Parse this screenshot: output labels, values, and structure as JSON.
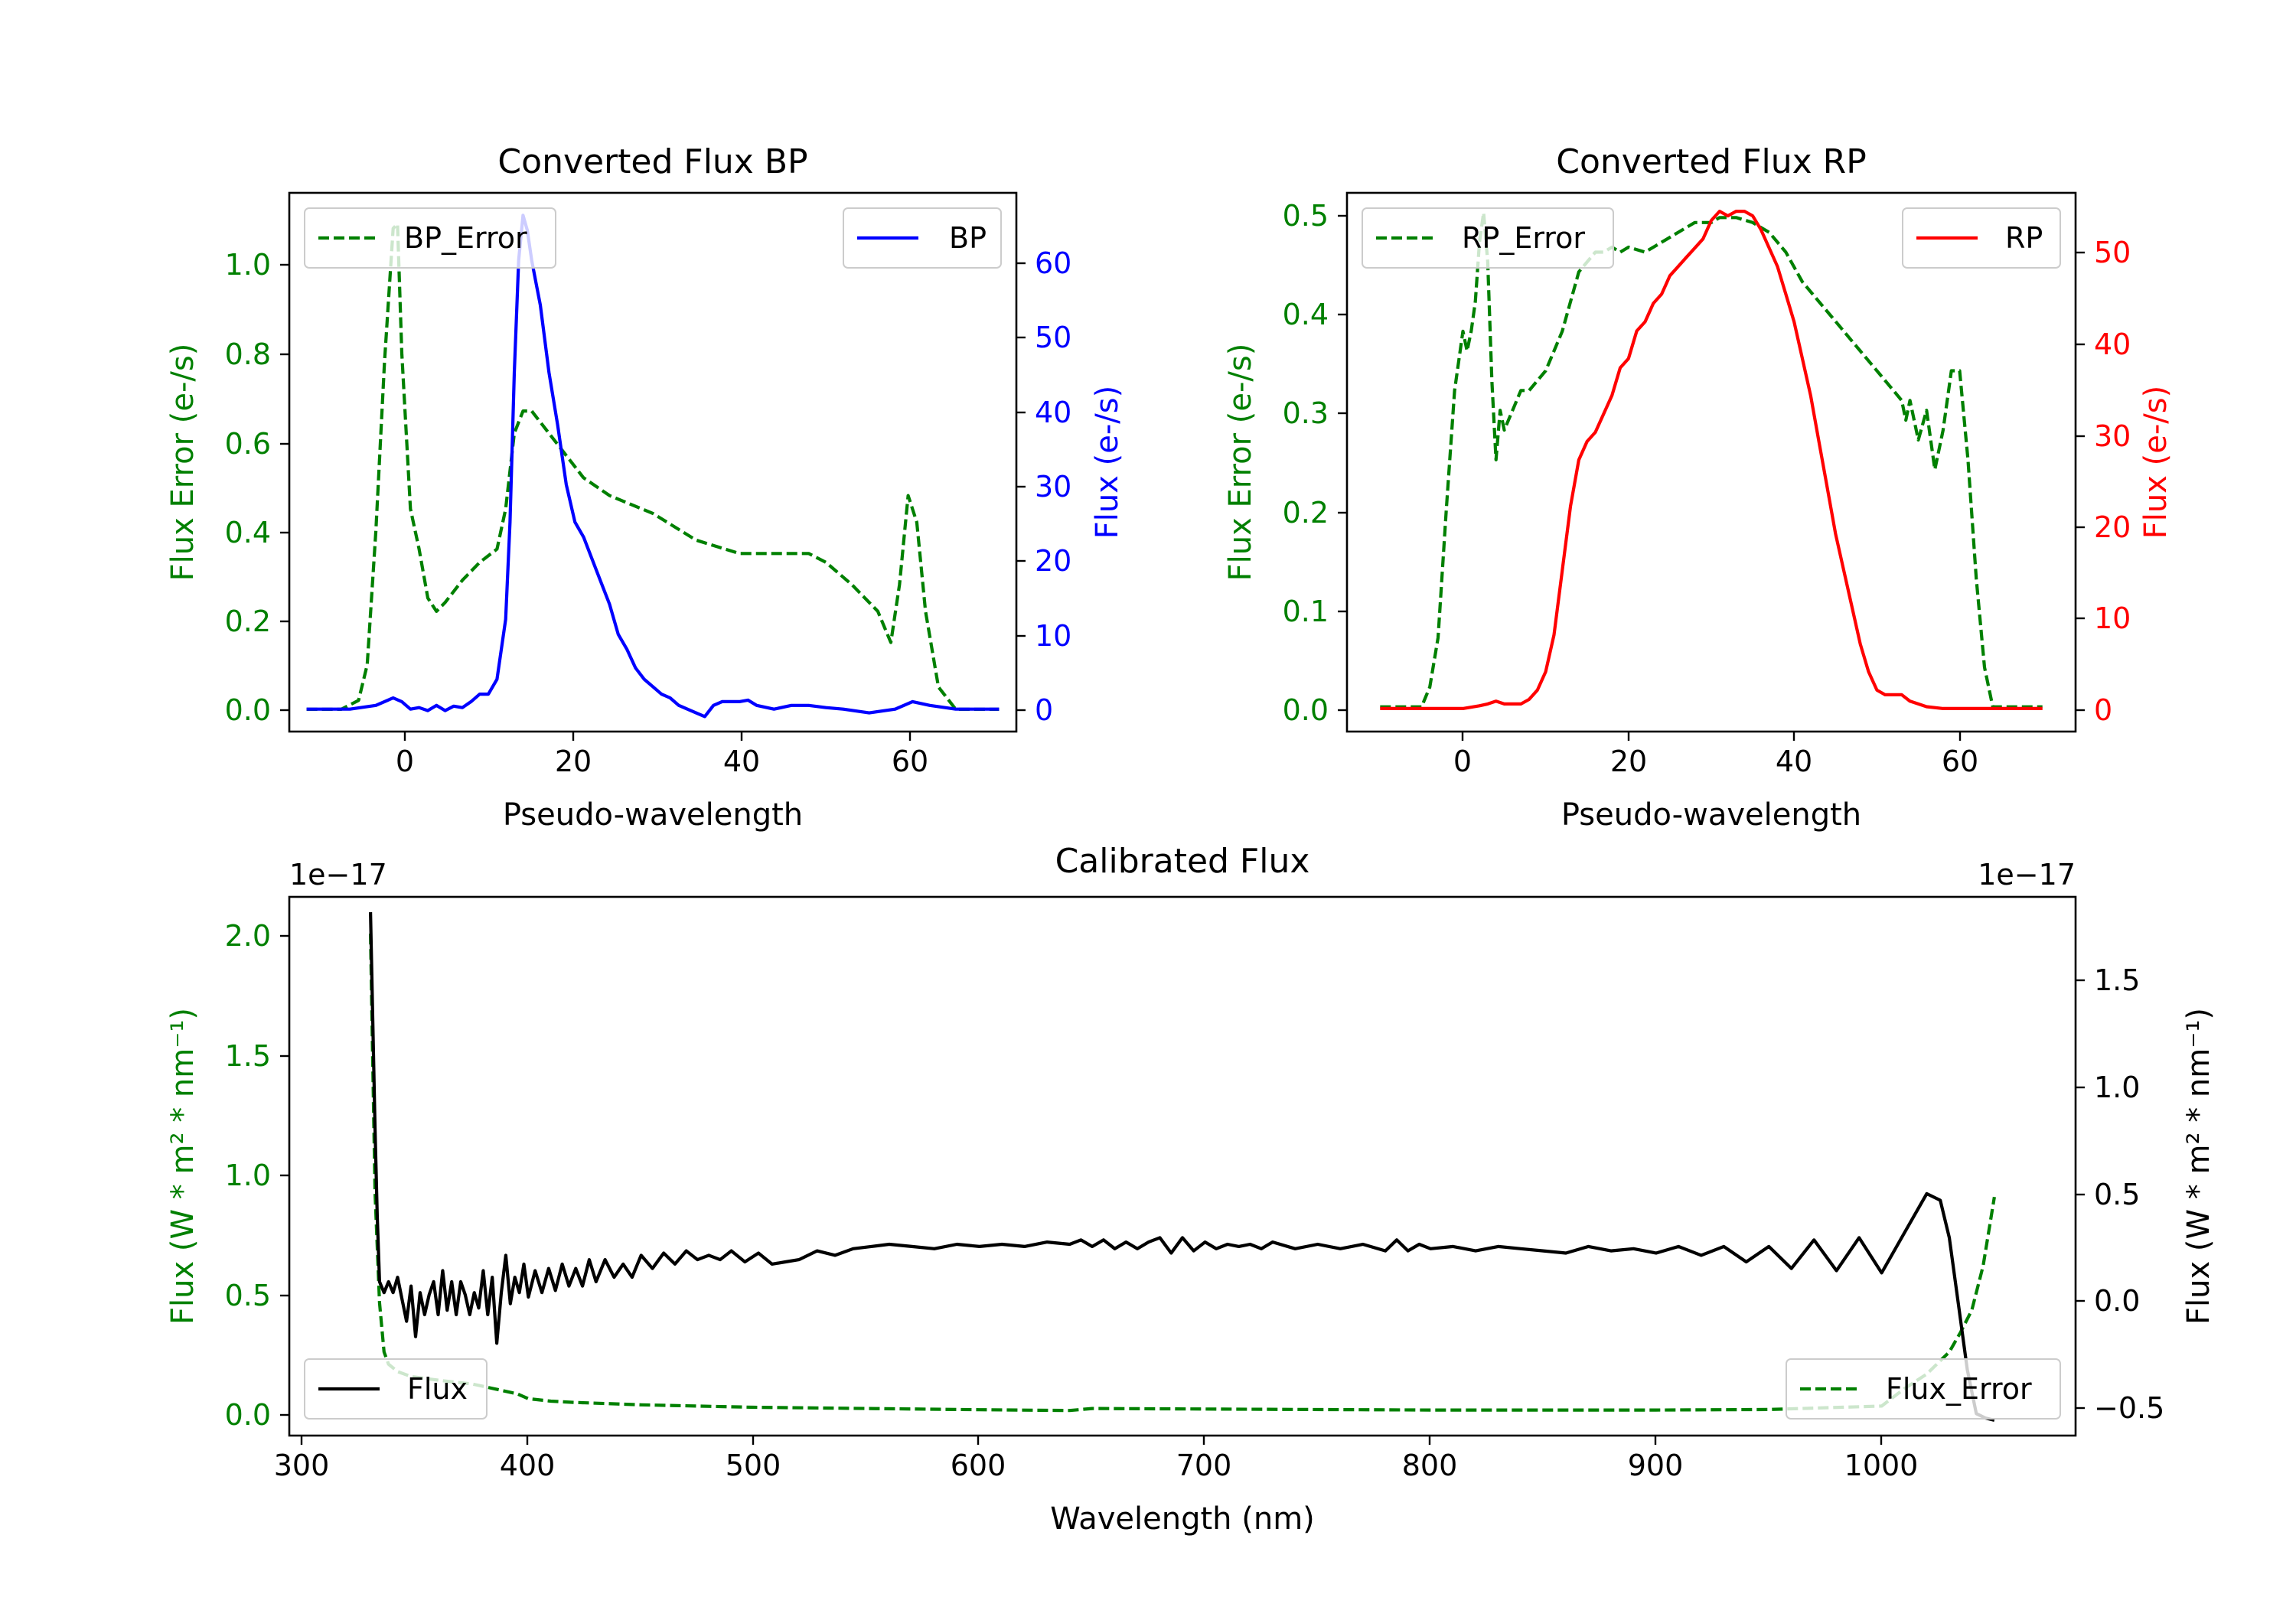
{
  "chart_data": [
    {
      "type": "line",
      "title": "Converted Flux BP",
      "xlabel": "Pseudo-wavelength",
      "xlim": [
        -12,
        72
      ],
      "xticks": [
        "0",
        "20",
        "40",
        "60"
      ],
      "left_axis": {
        "label": "Flux Error (e-/s)",
        "color": "#008000",
        "ylim": [
          -0.05,
          1.16
        ],
        "ticks": [
          "0.0",
          "0.2",
          "0.4",
          "0.6",
          "0.8",
          "1.0"
        ]
      },
      "right_axis": {
        "label": "Flux (e-/s)",
        "color": "#0000ff",
        "ylim": [
          -3,
          69
        ],
        "ticks": [
          "0",
          "10",
          "20",
          "30",
          "40",
          "50",
          "60"
        ]
      },
      "series": [
        {
          "name": "BP_Error",
          "axis": "left",
          "style": "dashed",
          "color": "#008000",
          "x": [
            -10,
            -6,
            -4,
            -3,
            -2,
            -1,
            0,
            0.5,
            1,
            2,
            3,
            4,
            5,
            6,
            8,
            10,
            12,
            13,
            14,
            15,
            16,
            18,
            20,
            22,
            25,
            30,
            35,
            40,
            45,
            48,
            50,
            53,
            56,
            57.5,
            58.5,
            59.5,
            60.5,
            61.5,
            63,
            65,
            70
          ],
          "y": [
            0.0,
            0.0,
            0.02,
            0.1,
            0.4,
            0.78,
            1.08,
            1.09,
            0.8,
            0.45,
            0.36,
            0.25,
            0.22,
            0.24,
            0.29,
            0.33,
            0.36,
            0.45,
            0.62,
            0.67,
            0.67,
            0.62,
            0.57,
            0.52,
            0.48,
            0.44,
            0.38,
            0.35,
            0.35,
            0.35,
            0.33,
            0.28,
            0.22,
            0.15,
            0.28,
            0.48,
            0.42,
            0.22,
            0.05,
            0.0,
            0.0
          ]
        },
        {
          "name": "BP",
          "axis": "right",
          "style": "solid",
          "color": "#0000ff",
          "x": [
            -10,
            -5,
            -2,
            0,
            1,
            2,
            3,
            4,
            5,
            6,
            7,
            8,
            9,
            10,
            11,
            12,
            13,
            13.5,
            14,
            14.5,
            15,
            15.5,
            16,
            16.5,
            17,
            18,
            19,
            20,
            21,
            22,
            23,
            24,
            25,
            26,
            27,
            28,
            29,
            30,
            31,
            32,
            33,
            34,
            35,
            36,
            37,
            38,
            39,
            40,
            41,
            42,
            44,
            46,
            48,
            50,
            52,
            55,
            58,
            60,
            62,
            65,
            70
          ],
          "y": [
            0,
            0,
            0.5,
            1.5,
            1.0,
            0,
            0.2,
            -0.2,
            0.5,
            -0.2,
            0.4,
            0.2,
            1.0,
            2.0,
            2.0,
            4.0,
            12,
            25,
            45,
            60,
            66,
            64,
            60,
            57,
            54,
            45,
            38,
            30,
            25,
            23,
            20,
            17,
            14,
            10,
            8,
            5.5,
            4,
            3,
            2,
            1.5,
            0.5,
            0,
            -0.5,
            -1,
            0.5,
            1,
            1,
            1,
            1.2,
            0.5,
            0,
            0.5,
            0.5,
            0.2,
            0,
            -0.5,
            0,
            1,
            0.5,
            0,
            0
          ]
        }
      ],
      "legend": [
        {
          "label": "BP_Error",
          "position": "upper-left"
        },
        {
          "label": "BP",
          "position": "upper-right"
        }
      ]
    },
    {
      "type": "line",
      "title": "Converted Flux RP",
      "xlabel": "Pseudo-wavelength",
      "xlim": [
        -14,
        74
      ],
      "xticks": [
        "0",
        "20",
        "40",
        "60"
      ],
      "left_axis": {
        "label": "Flux Error (e-/s)",
        "color": "#008000",
        "ylim": [
          -0.025,
          0.52
        ],
        "ticks": [
          "0.0",
          "0.1",
          "0.2",
          "0.3",
          "0.4",
          "0.5"
        ]
      },
      "right_axis": {
        "label": "Flux (e-/s)",
        "color": "#ff0000",
        "ylim": [
          -2.5,
          56
        ],
        "ticks": [
          "0",
          "10",
          "20",
          "30",
          "40",
          "50"
        ]
      },
      "series": [
        {
          "name": "RP_Error",
          "axis": "left",
          "style": "dashed",
          "color": "#008000",
          "x": [
            -10,
            -5,
            -4,
            -3,
            -2,
            -1,
            0,
            0.5,
            1,
            1.5,
            2,
            2.5,
            3,
            3.5,
            4,
            4.5,
            5,
            6,
            7,
            8,
            9,
            10,
            11,
            12,
            13,
            14,
            15,
            16,
            17,
            18,
            19,
            20,
            22,
            24,
            26,
            28,
            30,
            31,
            33,
            35,
            37,
            39,
            41,
            43,
            45,
            47,
            50,
            52,
            53,
            53.5,
            54,
            55,
            56,
            57,
            58,
            59,
            60,
            61,
            62,
            63,
            64,
            65,
            70
          ],
          "y": [
            0.0,
            0.0,
            0.02,
            0.07,
            0.2,
            0.32,
            0.38,
            0.36,
            0.38,
            0.41,
            0.47,
            0.5,
            0.45,
            0.33,
            0.25,
            0.3,
            0.28,
            0.3,
            0.32,
            0.32,
            0.33,
            0.34,
            0.36,
            0.38,
            0.41,
            0.44,
            0.45,
            0.46,
            0.46,
            0.465,
            0.46,
            0.465,
            0.46,
            0.47,
            0.48,
            0.49,
            0.49,
            0.495,
            0.495,
            0.49,
            0.48,
            0.46,
            0.43,
            0.41,
            0.39,
            0.37,
            0.34,
            0.32,
            0.31,
            0.29,
            0.31,
            0.27,
            0.3,
            0.24,
            0.28,
            0.34,
            0.34,
            0.25,
            0.13,
            0.04,
            0.0,
            0.0,
            0.0
          ]
        },
        {
          "name": "RP",
          "axis": "right",
          "style": "solid",
          "color": "#ff0000",
          "x": [
            -10,
            -5,
            0,
            2,
            3,
            4,
            5,
            6,
            7,
            8,
            9,
            10,
            11,
            12,
            13,
            14,
            15,
            16,
            17,
            18,
            19,
            20,
            21,
            22,
            23,
            24,
            25,
            26,
            27,
            28,
            29,
            30,
            31,
            32,
            33,
            34,
            35,
            36,
            37,
            38,
            39,
            40,
            41,
            42,
            43,
            44,
            45,
            46,
            47,
            48,
            49,
            50,
            51,
            52,
            53,
            54,
            55,
            56,
            58,
            60,
            65,
            70
          ],
          "y": [
            0,
            0,
            0,
            0.3,
            0.5,
            0.8,
            0.5,
            0.5,
            0.5,
            1,
            2,
            4,
            8,
            15,
            22,
            27,
            29,
            30,
            32,
            34,
            37,
            38,
            41,
            42,
            44,
            45,
            47,
            48,
            49,
            50,
            51,
            53,
            54,
            53.5,
            54,
            54,
            53.5,
            52,
            50,
            48,
            45,
            42,
            38,
            34,
            29,
            24,
            19,
            15,
            11,
            7,
            4,
            2,
            1.5,
            1.5,
            1.5,
            0.8,
            0.5,
            0.2,
            0,
            0,
            0,
            0
          ]
        }
      ],
      "legend": [
        {
          "label": "RP_Error",
          "position": "upper-left"
        },
        {
          "label": "RP",
          "position": "upper-right"
        }
      ]
    },
    {
      "type": "line",
      "title": "Calibrated Flux",
      "xlabel": "Wavelength (nm)",
      "xlim": [
        294,
        1086
      ],
      "xticks": [
        "300",
        "400",
        "500",
        "600",
        "700",
        "800",
        "900",
        "1000"
      ],
      "left_axis": {
        "label": "Flux (W * m² * nm⁻¹)",
        "color": "#008000",
        "ylim": [
          -0.09,
          2.1
        ],
        "ticks": [
          "0.0",
          "0.5",
          "1.0",
          "1.5",
          "2.0"
        ],
        "offset_text": "1e−17"
      },
      "right_axis": {
        "label": "Flux (W * m² * nm⁻¹)",
        "color": "#000000",
        "ylim": [
          -0.6,
          1.85
        ],
        "ticks": [
          "−0.5",
          "0.0",
          "0.5",
          "1.0",
          "1.5"
        ],
        "offset_text": "1e−17"
      },
      "series": [
        {
          "name": "Flux",
          "axis": "right",
          "style": "solid",
          "color": "#000000",
          "x": [
            330,
            331,
            332,
            333,
            334,
            336,
            338,
            340,
            342,
            344,
            346,
            348,
            350,
            352,
            354,
            356,
            358,
            360,
            362,
            364,
            366,
            368,
            370,
            372,
            374,
            376,
            378,
            380,
            382,
            384,
            386,
            388,
            390,
            392,
            394,
            396,
            398,
            400,
            403,
            406,
            409,
            412,
            415,
            418,
            421,
            424,
            427,
            430,
            434,
            438,
            442,
            446,
            450,
            455,
            460,
            465,
            470,
            475,
            480,
            485,
            490,
            496,
            502,
            508,
            514,
            520,
            528,
            536,
            544,
            552,
            560,
            570,
            580,
            590,
            600,
            610,
            620,
            630,
            640,
            645,
            650,
            655,
            660,
            665,
            670,
            675,
            680,
            685,
            690,
            695,
            700,
            705,
            710,
            715,
            720,
            725,
            730,
            740,
            750,
            760,
            770,
            780,
            785,
            790,
            795,
            800,
            810,
            820,
            830,
            840,
            850,
            860,
            870,
            880,
            890,
            900,
            910,
            920,
            930,
            940,
            950,
            960,
            970,
            980,
            990,
            1000,
            1010,
            1020,
            1026,
            1030,
            1034,
            1038,
            1042,
            1046,
            1050
          ],
          "y": [
            1.78,
            1.3,
            0.8,
            0.4,
            0.1,
            0.05,
            0.1,
            0.05,
            0.12,
            0.02,
            -0.08,
            0.08,
            -0.15,
            0.05,
            -0.05,
            0.04,
            0.1,
            -0.05,
            0.15,
            -0.03,
            0.1,
            -0.05,
            0.1,
            0.04,
            -0.05,
            0.05,
            -0.02,
            0.15,
            -0.05,
            0.12,
            -0.18,
            0.05,
            0.22,
            0.0,
            0.12,
            0.05,
            0.18,
            0.03,
            0.15,
            0.05,
            0.16,
            0.06,
            0.18,
            0.08,
            0.16,
            0.08,
            0.2,
            0.1,
            0.2,
            0.12,
            0.18,
            0.12,
            0.22,
            0.16,
            0.23,
            0.18,
            0.24,
            0.2,
            0.22,
            0.2,
            0.24,
            0.19,
            0.23,
            0.18,
            0.19,
            0.2,
            0.24,
            0.22,
            0.25,
            0.26,
            0.27,
            0.26,
            0.25,
            0.27,
            0.26,
            0.27,
            0.26,
            0.28,
            0.27,
            0.29,
            0.26,
            0.29,
            0.25,
            0.28,
            0.25,
            0.28,
            0.3,
            0.23,
            0.3,
            0.24,
            0.28,
            0.25,
            0.27,
            0.26,
            0.27,
            0.25,
            0.28,
            0.25,
            0.27,
            0.25,
            0.27,
            0.24,
            0.29,
            0.24,
            0.27,
            0.25,
            0.26,
            0.24,
            0.26,
            0.25,
            0.24,
            0.23,
            0.26,
            0.24,
            0.25,
            0.23,
            0.26,
            0.22,
            0.26,
            0.19,
            0.26,
            0.16,
            0.29,
            0.15,
            0.3,
            0.14,
            0.32,
            0.5,
            0.47,
            0.3,
            0.0,
            -0.3,
            -0.5,
            -0.52,
            -0.53
          ]
        },
        {
          "name": "Flux_Error",
          "axis": "left",
          "style": "dashed",
          "color": "#008000",
          "x": [
            330,
            332,
            334,
            336,
            338,
            342,
            348,
            356,
            365,
            375,
            385,
            395,
            400,
            410,
            420,
            450,
            500,
            550,
            600,
            640,
            650,
            700,
            800,
            900,
            950,
            1000,
            1010,
            1020,
            1030,
            1035,
            1040,
            1045,
            1050
          ],
          "y": [
            1.95,
            0.9,
            0.45,
            0.25,
            0.2,
            0.17,
            0.15,
            0.14,
            0.13,
            0.12,
            0.1,
            0.08,
            0.06,
            0.05,
            0.045,
            0.035,
            0.025,
            0.02,
            0.015,
            0.012,
            0.02,
            0.018,
            0.014,
            0.014,
            0.016,
            0.03,
            0.1,
            0.16,
            0.25,
            0.33,
            0.42,
            0.6,
            0.88
          ]
        }
      ],
      "legend": [
        {
          "label": "Flux",
          "position": "lower-left"
        },
        {
          "label": "Flux_Error",
          "position": "lower-right"
        }
      ]
    }
  ]
}
